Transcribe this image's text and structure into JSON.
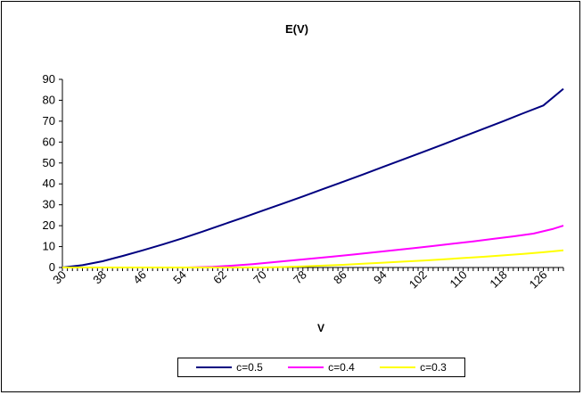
{
  "chart_data": {
    "type": "line",
    "title": "E(V)",
    "xlabel": "V",
    "ylabel": "",
    "x_tick_labels": [
      "30",
      "38",
      "46",
      "54",
      "62",
      "70",
      "78",
      "86",
      "94",
      "102",
      "110",
      "118",
      "126"
    ],
    "x_range": [
      30,
      130
    ],
    "ylim": [
      0,
      90
    ],
    "y_ticks": [
      0,
      10,
      20,
      30,
      40,
      50,
      60,
      70,
      80,
      90
    ],
    "grid": false,
    "legend_position": "bottom",
    "series": [
      {
        "name": "c=0.5",
        "color": "#000080",
        "x": [
          30,
          34,
          38,
          42,
          46,
          50,
          54,
          58,
          62,
          66,
          70,
          74,
          78,
          82,
          86,
          90,
          94,
          98,
          102,
          106,
          110,
          114,
          118,
          122,
          126,
          130
        ],
        "y": [
          0,
          1.1,
          3.0,
          5.5,
          8.2,
          11.0,
          14.0,
          17.2,
          20.5,
          23.8,
          27.2,
          30.6,
          34.0,
          37.5,
          41.0,
          44.5,
          48.1,
          51.7,
          55.3,
          58.9,
          62.6,
          66.3,
          70.0,
          73.8,
          77.5,
          85.5
        ]
      },
      {
        "name": "c=0.4",
        "color": "#FF00FF",
        "x": [
          30,
          40,
          50,
          55,
          60,
          64,
          68,
          72,
          76,
          80,
          84,
          88,
          92,
          96,
          100,
          104,
          108,
          112,
          116,
          120,
          124,
          128,
          130
        ],
        "y": [
          0,
          0,
          0,
          0,
          0.3,
          0.9,
          1.6,
          2.5,
          3.4,
          4.3,
          5.2,
          6.2,
          7.2,
          8.2,
          9.2,
          10.3,
          11.4,
          12.5,
          13.7,
          14.9,
          16.2,
          18.5,
          20.0
        ]
      },
      {
        "name": "c=0.3",
        "color": "#FFFF00",
        "x": [
          30,
          50,
          70,
          74,
          78,
          82,
          86,
          90,
          94,
          98,
          102,
          106,
          110,
          114,
          118,
          122,
          126,
          130
        ],
        "y": [
          0,
          0,
          0,
          0.2,
          0.5,
          0.9,
          1.3,
          1.8,
          2.3,
          2.8,
          3.3,
          3.9,
          4.5,
          5.1,
          5.8,
          6.5,
          7.3,
          8.2
        ]
      }
    ]
  }
}
